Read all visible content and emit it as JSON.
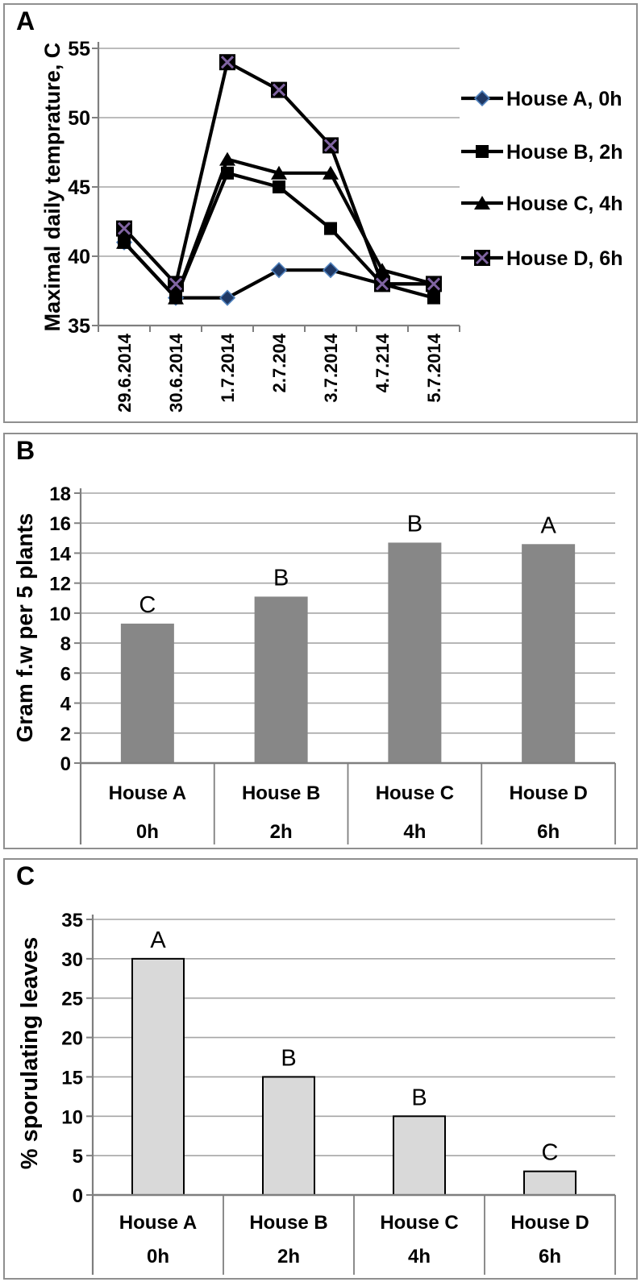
{
  "panels": [
    {
      "label": "A"
    },
    {
      "label": "B"
    },
    {
      "label": "C"
    }
  ],
  "colors": {
    "line": "#000000",
    "grid": "#a6a6a6",
    "axis": "#7f7f7f",
    "text": "#000000",
    "diamond_fill": "#1f3864",
    "diamond_edge": "#4f81bd",
    "xsquare_fill": "#000000",
    "xsquare_cross": "#8064a2",
    "bar_b_fill": "#878787",
    "bar_c_fill": "#d9d9d9",
    "bar_c_edge": "#000000",
    "panel_border": "#8f8f8f"
  },
  "chart_data": [
    {
      "type": "line",
      "panel": "A",
      "title": "",
      "xlabel": "",
      "ylabel": "Maximal daily temprature, C",
      "categories": [
        "29.6.2014",
        "30.6.2014",
        "1.7.2014",
        "2.7.204",
        "3.7.2014",
        "4.7.214",
        "5.7.2014"
      ],
      "ylim": [
        35,
        55
      ],
      "yticks": [
        35,
        40,
        45,
        50,
        55
      ],
      "grid": true,
      "legend_position": "right",
      "series": [
        {
          "name": "House A, 0h",
          "marker": "diamond",
          "values": [
            41,
            37,
            37,
            39,
            39,
            38,
            38
          ]
        },
        {
          "name": "House B, 2h",
          "marker": "square",
          "values": [
            41,
            37,
            46,
            45,
            42,
            38,
            37
          ]
        },
        {
          "name": "House C, 4h",
          "marker": "triangle",
          "values": [
            41,
            37,
            47,
            46,
            46,
            39,
            38
          ]
        },
        {
          "name": "House D, 6h",
          "marker": "x-square",
          "values": [
            42,
            38,
            54,
            52,
            48,
            38,
            38
          ]
        }
      ]
    },
    {
      "type": "bar",
      "panel": "B",
      "title": "",
      "xlabel": "",
      "ylabel": "Gram f.w per 5 plants",
      "categories": [
        "House A",
        "House B",
        "House C",
        "House D"
      ],
      "time_labels": [
        "0h",
        "2h",
        "4h",
        "6h"
      ],
      "values": [
        9.3,
        11.1,
        14.7,
        14.6
      ],
      "sig_letters": [
        "C",
        "B",
        "B",
        "A"
      ],
      "ylim": [
        0,
        18
      ],
      "ytick_step": 2,
      "grid": true,
      "legend_position": "none"
    },
    {
      "type": "bar",
      "panel": "C",
      "title": "",
      "xlabel": "",
      "ylabel": "% sporulating leaves",
      "categories": [
        "House A",
        "House B",
        "House C",
        "House D"
      ],
      "time_labels": [
        "0h",
        "2h",
        "4h",
        "6h"
      ],
      "values": [
        30,
        15,
        10,
        3
      ],
      "sig_letters": [
        "A",
        "B",
        "B",
        "C"
      ],
      "ylim": [
        0,
        35
      ],
      "ytick_step": 5,
      "grid": true,
      "legend_position": "none"
    }
  ]
}
